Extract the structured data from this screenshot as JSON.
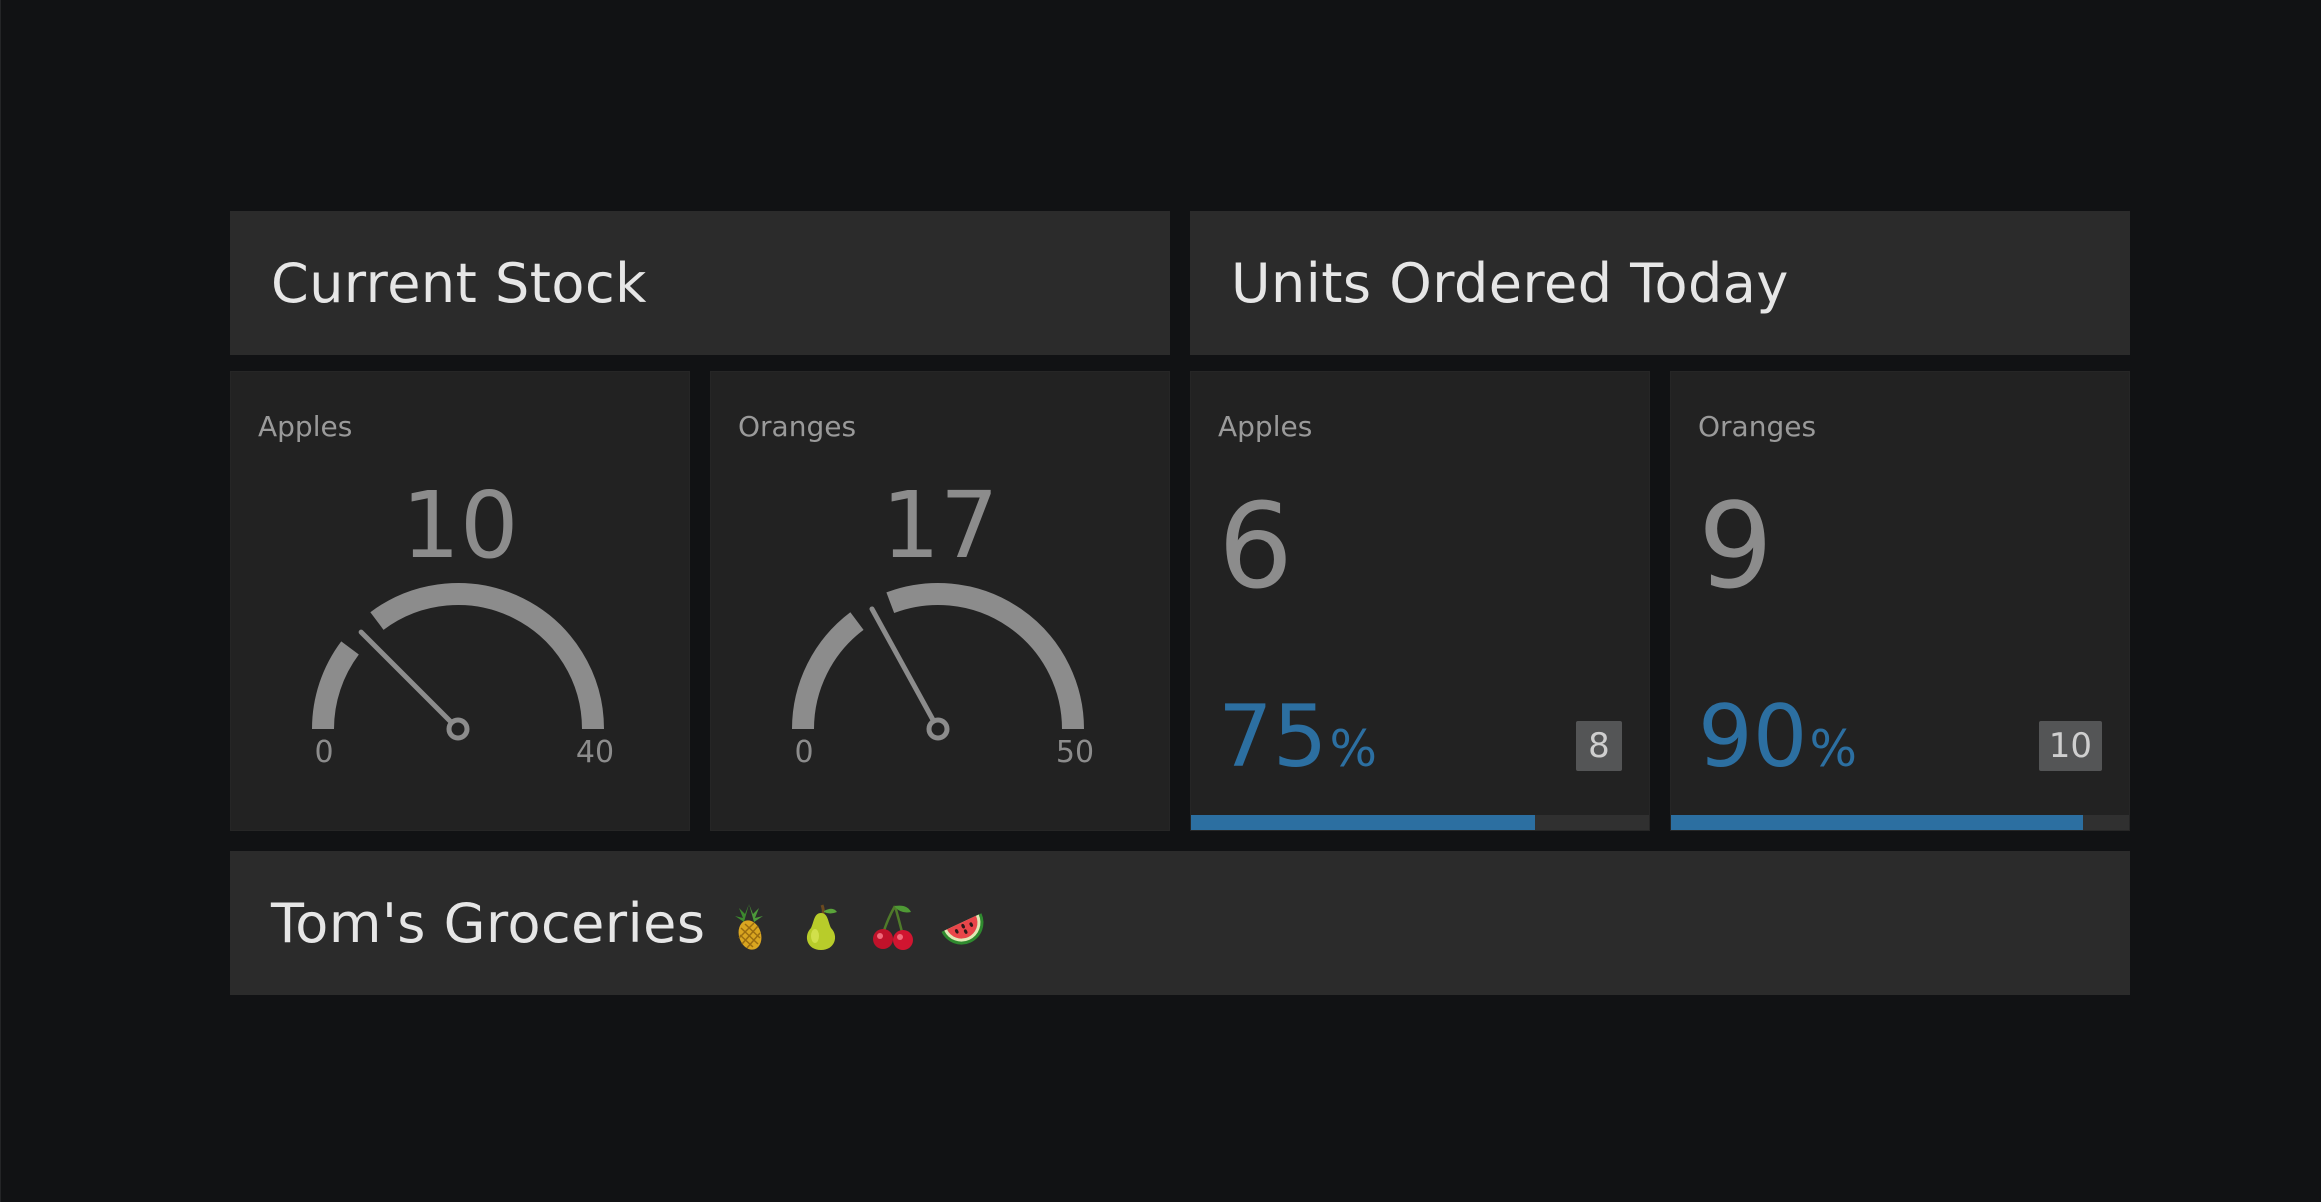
{
  "panels": {
    "current_stock_title": "Current Stock",
    "units_ordered_title": "Units Ordered Today",
    "footer_title": "Tom's Groceries"
  },
  "current_stock": [
    {
      "label": "Apples",
      "value": "10",
      "min": "0",
      "max": "40",
      "level": 0.25
    },
    {
      "label": "Oranges",
      "value": "17",
      "min": "0",
      "max": "50",
      "level": 0.34
    }
  ],
  "units_ordered": [
    {
      "label": "Apples",
      "value": "6",
      "percent": "75",
      "percent_sign": "%",
      "target": "8",
      "progress": 0.75
    },
    {
      "label": "Oranges",
      "value": "9",
      "percent": "90",
      "percent_sign": "%",
      "target": "10",
      "progress": 0.9
    }
  ],
  "footer_emojis": [
    "pineapple-icon",
    "pear-icon",
    "cherries-icon",
    "watermelon-icon"
  ],
  "colors": {
    "background": "#111214",
    "panel": "#2b2b2b",
    "tile": "#222222",
    "accent": "#2c6fa1",
    "gauge": "#8c8c8c"
  }
}
